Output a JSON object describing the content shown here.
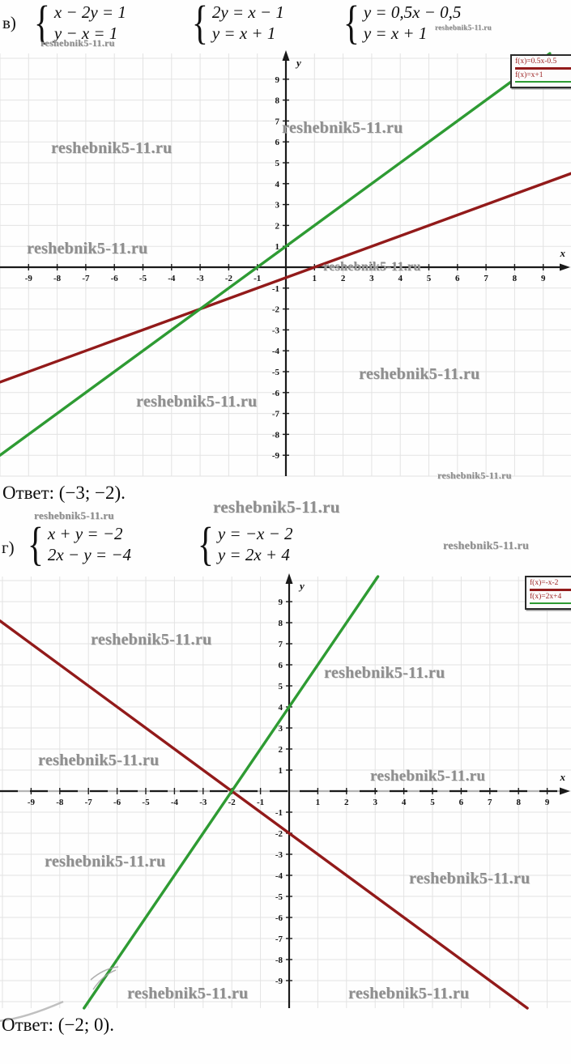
{
  "watermark": "reshebnik5-11.ru",
  "section_v": {
    "label": "в)",
    "systems": [
      {
        "line1": "x − 2y = 1",
        "line2": "y − x = 1"
      },
      {
        "line1": "2y = x − 1",
        "line2": "y = x + 1"
      },
      {
        "line1": "y = 0,5x − 0,5",
        "line2": "y = x + 1"
      }
    ],
    "answer": "Ответ: (−3; −2)."
  },
  "section_g": {
    "label": "г)",
    "systems": [
      {
        "line1": "x + y = −2",
        "line2": "2x − y = −4"
      },
      {
        "line1": "y = −x − 2",
        "line2": "y = 2x + 4"
      }
    ],
    "answer": "Ответ: (−2; 0)."
  },
  "chart_data": [
    {
      "type": "line",
      "title": "",
      "xlabel": "x",
      "ylabel": "y",
      "xlim": [
        -10,
        10
      ],
      "ylim": [
        -10,
        10
      ],
      "xticks": [
        -9,
        -8,
        -7,
        -6,
        -5,
        -4,
        -3,
        -2,
        -1,
        1,
        2,
        3,
        4,
        5,
        6,
        7,
        8,
        9
      ],
      "yticks": [
        -9,
        -8,
        -7,
        -6,
        -5,
        -4,
        -3,
        -2,
        -1,
        1,
        2,
        3,
        4,
        5,
        6,
        7,
        8,
        9
      ],
      "grid": true,
      "legend_position": "top-right",
      "series": [
        {
          "name": "f(x)=0.5x-0.5",
          "equation": "y = 0,5x − 0,5",
          "slope": 0.5,
          "intercept": -0.5,
          "color": "#921a1a"
        },
        {
          "name": "f(x)=x+1",
          "equation": "y = x + 1",
          "slope": 1,
          "intercept": 1,
          "color": "#2e9b33"
        }
      ],
      "intersection": [
        -3,
        -2
      ]
    },
    {
      "type": "line",
      "title": "",
      "xlabel": "x",
      "ylabel": "y",
      "xlim": [
        -10,
        10
      ],
      "ylim": [
        -10,
        10
      ],
      "xticks": [
        -9,
        -8,
        -7,
        -6,
        -5,
        -4,
        -3,
        -2,
        -1,
        1,
        2,
        3,
        4,
        5,
        6,
        7,
        8,
        9
      ],
      "yticks": [
        -9,
        -8,
        -7,
        -6,
        -5,
        -4,
        -3,
        -2,
        -1,
        1,
        2,
        3,
        4,
        5,
        6,
        7,
        8,
        9
      ],
      "grid": true,
      "legend_position": "top-right",
      "x_axis_style": "dashed",
      "series": [
        {
          "name": "f(x)=-x-2",
          "equation": "y = −x − 2",
          "slope": -1,
          "intercept": -2,
          "color": "#921a1a"
        },
        {
          "name": "f(x)=2x+4",
          "equation": "y = 2x + 4",
          "slope": 2,
          "intercept": 4,
          "color": "#2e9b33"
        }
      ],
      "intersection": [
        -2,
        0
      ]
    }
  ]
}
